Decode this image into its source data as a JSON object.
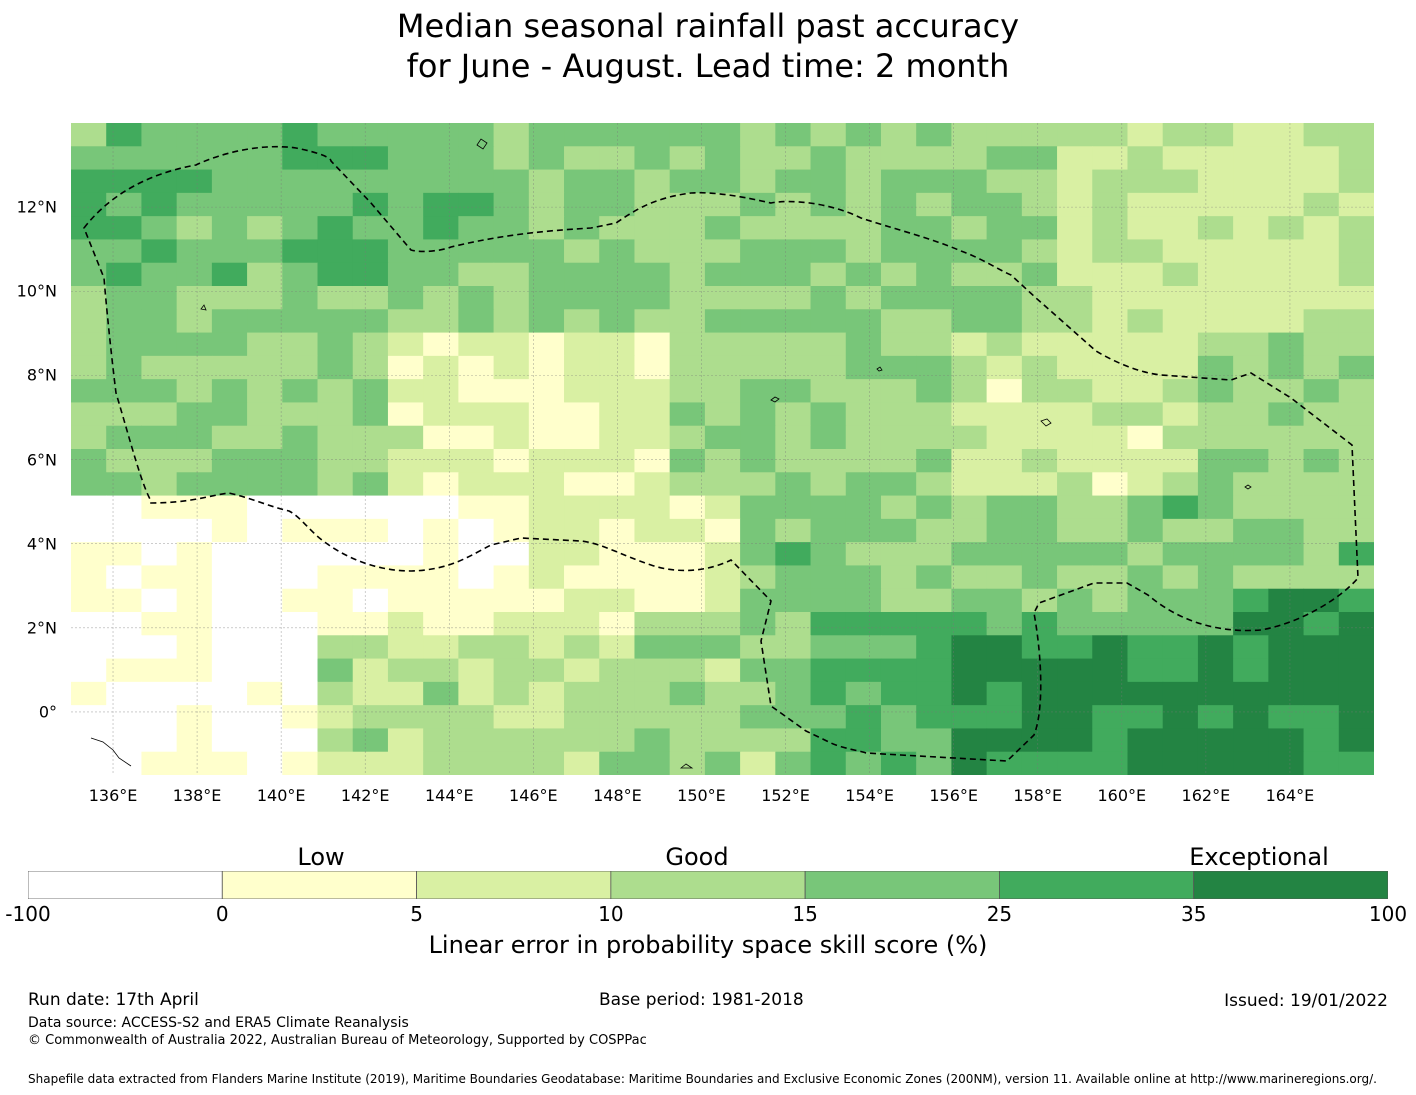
{
  "title": {
    "line1": "Median seasonal rainfall past accuracy",
    "line2": "for June - August. Lead time: 2 month"
  },
  "map": {
    "lon_labels": [
      "136°E",
      "138°E",
      "140°E",
      "142°E",
      "144°E",
      "146°E",
      "148°E",
      "150°E",
      "152°E",
      "154°E",
      "156°E",
      "158°E",
      "160°E",
      "162°E",
      "164°E"
    ],
    "lon_values": [
      136,
      138,
      140,
      142,
      144,
      146,
      148,
      150,
      152,
      154,
      156,
      158,
      160,
      162,
      164
    ],
    "lat_labels": [
      "12°N",
      "10°N",
      "8°N",
      "6°N",
      "4°N",
      "2°N",
      "0°"
    ],
    "lat_values": [
      12,
      10,
      8,
      6,
      4,
      2,
      0
    ],
    "lon_range": [
      135,
      166
    ],
    "lat_range": [
      -1.5,
      14
    ],
    "gridlines": true,
    "region_outline": "dashed maritime boundary (EEZ)"
  },
  "colorbar": {
    "categories": [
      "Low",
      "Good",
      "Exceptional"
    ],
    "ticks": [
      "-100",
      "0",
      "5",
      "10",
      "15",
      "25",
      "35",
      "100"
    ],
    "colors": [
      "#ffffff",
      "#ffffcc",
      "#d9f0a3",
      "#addd8e",
      "#78c679",
      "#41ab5d",
      "#238443"
    ],
    "label": "Linear error in probability space skill score (%)"
  },
  "footer": {
    "run_date": "Run date: 17th April",
    "base_period": "Base period: 1981-2018",
    "issued": "Issued: 19/01/2022",
    "data_source": "Data source: ACCESS-S2 and ERA5 Climate Reanalysis",
    "copyright": "© Commonwealth of Australia 2022, Australian Bureau of Meteorology, Supported by COSPPac",
    "shapefile": "Shapefile data extracted from Flanders Marine Institute (2019), Maritime Boundaries Geodatabase: Maritime Boundaries and Exclusive Economic Zones (200NM), version 11. Available online at http://www.marineregions.org/."
  }
}
